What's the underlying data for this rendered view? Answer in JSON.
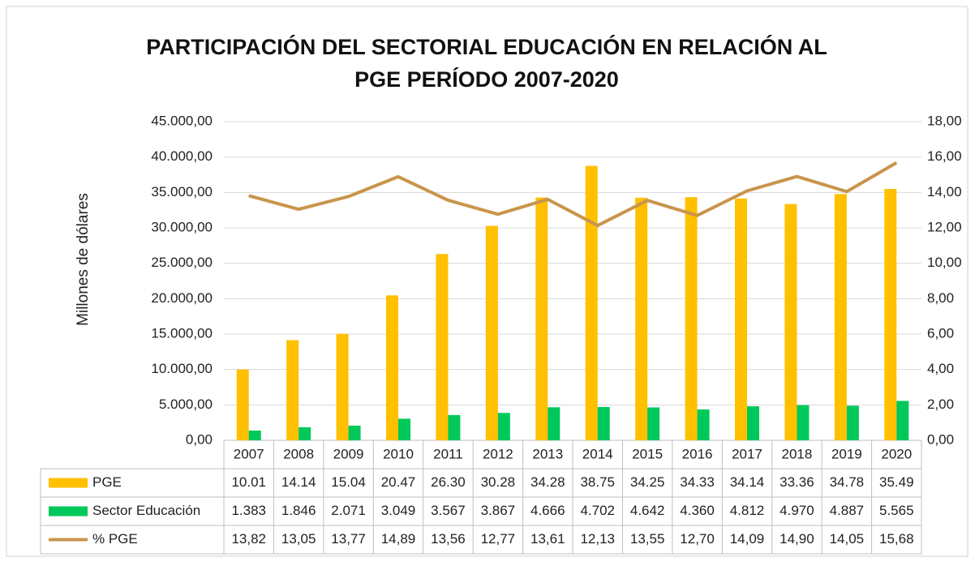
{
  "chart_data": {
    "type": "bar",
    "title": [
      "PARTICIPACIÓN DEL SECTORIAL EDUCACIÓN EN RELACIÓN AL",
      "PGE PERÍODO 2007-2020"
    ],
    "y_label": "Millones de dólares",
    "categories": [
      "2007",
      "2008",
      "2009",
      "2010",
      "2011",
      "2012",
      "2013",
      "2014",
      "2015",
      "2016",
      "2017",
      "2018",
      "2019",
      "2020"
    ],
    "series": [
      {
        "name": "PGE",
        "color": "#ffc000",
        "type": "bar",
        "values": [
          10010,
          14140,
          15040,
          20470,
          26300,
          30280,
          34280,
          38750,
          34250,
          34330,
          34140,
          33360,
          34780,
          35490
        ],
        "value_labels": [
          "10.01",
          "14.14",
          "15.04",
          "20.47",
          "26.30",
          "30.28",
          "34.28",
          "38.75",
          "34.25",
          "34.33",
          "34.14",
          "33.36",
          "34.78",
          "35.49"
        ]
      },
      {
        "name": "Sector Educación",
        "color": "#00c85a",
        "type": "bar",
        "values": [
          1383,
          1846,
          2071,
          3049,
          3567,
          3867,
          4666,
          4702,
          4642,
          4360,
          4812,
          4970,
          4887,
          5565
        ],
        "value_labels": [
          "1.383",
          "1.846",
          "2.071",
          "3.049",
          "3.567",
          "3.867",
          "4.666",
          "4.702",
          "4.642",
          "4.360",
          "4.812",
          "4.970",
          "4.887",
          "5.565"
        ]
      },
      {
        "name": "% PGE",
        "color": "#c9954c",
        "type": "line",
        "axis": "y2",
        "values": [
          13.82,
          13.05,
          13.77,
          14.89,
          13.56,
          12.77,
          13.61,
          12.13,
          13.55,
          12.7,
          14.09,
          14.9,
          14.05,
          15.68
        ],
        "value_labels": [
          "13,82",
          "13,05",
          "13,77",
          "14,89",
          "13,56",
          "12,77",
          "13,61",
          "12,13",
          "13,55",
          "12,70",
          "14,09",
          "14,90",
          "14,05",
          "15,68"
        ]
      }
    ],
    "ylim": [
      0,
      45000
    ],
    "yticks": [
      {
        "value": 0,
        "label": "0,00"
      },
      {
        "value": 5000,
        "label": "5.000,00"
      },
      {
        "value": 10000,
        "label": "10.000,00"
      },
      {
        "value": 15000,
        "label": "15.000,00"
      },
      {
        "value": 20000,
        "label": "20.000,00"
      },
      {
        "value": 25000,
        "label": "25.000,00"
      },
      {
        "value": 30000,
        "label": "30.000,00"
      },
      {
        "value": 35000,
        "label": "35.000,00"
      },
      {
        "value": 40000,
        "label": "40.000,00"
      },
      {
        "value": 45000,
        "label": "45.000,00"
      }
    ],
    "y2lim": [
      0,
      18
    ],
    "y2ticks": [
      {
        "value": 0,
        "label": "0,00"
      },
      {
        "value": 2,
        "label": "2,00"
      },
      {
        "value": 4,
        "label": "4,00"
      },
      {
        "value": 6,
        "label": "6,00"
      },
      {
        "value": 8,
        "label": "8,00"
      },
      {
        "value": 10,
        "label": "10,00"
      },
      {
        "value": 12,
        "label": "12,00"
      },
      {
        "value": 14,
        "label": "14,00"
      },
      {
        "value": 16,
        "label": "16,00"
      },
      {
        "value": 18,
        "label": "18,00"
      }
    ],
    "grid": true
  }
}
